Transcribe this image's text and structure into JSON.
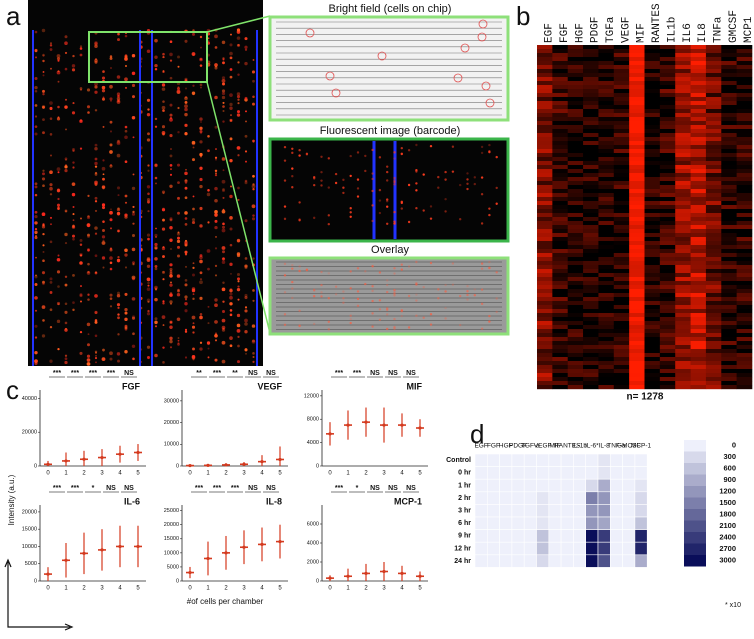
{
  "panel_a": {
    "label": "a",
    "bright_field_title": "Bright field (cells on chip)",
    "fluorescent_title": "Fluorescent image (barcode)",
    "overlay_title": "Overlay"
  },
  "panel_b": {
    "label": "b",
    "columns": [
      "EGF",
      "FGF",
      "HGF",
      "PDGF",
      "TGFa",
      "VEGF",
      "MIF",
      "RANTES",
      "IL1b",
      "IL6",
      "IL8",
      "TNFa",
      "GMCSF",
      "MCP1"
    ],
    "note": "n= 1278"
  },
  "panel_c": {
    "label": "c",
    "y_axis_label": "Intensity (a.u.)",
    "x_axis_label": "#of cells per chamber"
  },
  "panel_d": {
    "label": "d"
  },
  "chart_data": [
    {
      "type": "scatter",
      "title": "FGF",
      "categories": [
        "0",
        "1",
        "2",
        "3",
        "4",
        "5"
      ],
      "values": [
        1000,
        3000,
        4000,
        5000,
        7000,
        8000
      ],
      "errors": [
        2000,
        5000,
        5000,
        5000,
        5000,
        5000
      ],
      "color": "#d43a1f",
      "significance": [
        "***",
        "***",
        "***",
        "***",
        "NS"
      ],
      "ylim": [
        0,
        45000
      ],
      "yticks": [
        0,
        20000,
        40000
      ]
    },
    {
      "type": "scatter",
      "title": "VEGF",
      "categories": [
        "0",
        "1",
        "2",
        "3",
        "4",
        "5"
      ],
      "values": [
        200,
        300,
        500,
        800,
        2000,
        3000
      ],
      "errors": [
        500,
        500,
        800,
        1000,
        3000,
        6000
      ],
      "color": "#d43a1f",
      "significance": [
        "**",
        "***",
        "**",
        "NS",
        "NS"
      ],
      "ylim": [
        0,
        35000
      ],
      "yticks": [
        0,
        10000,
        20000,
        30000
      ]
    },
    {
      "type": "scatter",
      "title": "MIF",
      "categories": [
        "0",
        "1",
        "2",
        "3",
        "4",
        "5"
      ],
      "values": [
        5500,
        7000,
        7500,
        7000,
        7000,
        6500
      ],
      "errors": [
        2000,
        2500,
        2500,
        3000,
        2000,
        1500
      ],
      "color": "#d43a1f",
      "significance": [
        "***",
        "***",
        "NS",
        "NS",
        "NS"
      ],
      "ylim": [
        0,
        13000
      ],
      "yticks": [
        0,
        4000,
        8000,
        12000
      ]
    },
    {
      "type": "scatter",
      "title": "IL-6",
      "categories": [
        "0",
        "1",
        "2",
        "3",
        "4",
        "5"
      ],
      "values": [
        2000,
        6000,
        8000,
        9000,
        10000,
        10000
      ],
      "errors": [
        2000,
        5000,
        6000,
        6000,
        6000,
        6000
      ],
      "color": "#d43a1f",
      "significance": [
        "***",
        "***",
        "*",
        "NS",
        "NS"
      ],
      "ylim": [
        0,
        22000
      ],
      "yticks": [
        0,
        5000,
        10000,
        15000,
        20000
      ]
    },
    {
      "type": "scatter",
      "title": "IL-8",
      "categories": [
        "0",
        "1",
        "2",
        "3",
        "4",
        "5"
      ],
      "values": [
        3000,
        8000,
        10000,
        12000,
        13000,
        14000
      ],
      "errors": [
        2000,
        6000,
        6000,
        6000,
        6000,
        6000
      ],
      "color": "#d43a1f",
      "significance": [
        "***",
        "***",
        "***",
        "NS",
        "NS"
      ],
      "ylim": [
        0,
        27000
      ],
      "yticks": [
        0,
        5000,
        10000,
        15000,
        20000,
        25000
      ]
    },
    {
      "type": "scatter",
      "title": "MCP-1",
      "categories": [
        "0",
        "1",
        "2",
        "3",
        "4",
        "5"
      ],
      "values": [
        300,
        500,
        800,
        1000,
        800,
        500
      ],
      "errors": [
        300,
        800,
        1000,
        1000,
        800,
        500
      ],
      "color": "#d43a1f",
      "significance": [
        "***",
        "*",
        "NS",
        "NS",
        "NS"
      ],
      "ylim": [
        0,
        8000
      ],
      "yticks": [
        0,
        2000,
        4000,
        6000
      ]
    },
    {
      "type": "heatmap",
      "categories": [
        "EGF",
        "FGF",
        "HGF",
        "PDGF",
        "TGF-a",
        "VEGF",
        "MIF",
        "RANTES",
        "IL-1b",
        "IL-6*",
        "IL-8",
        "TNF-a",
        "GMCSF",
        "MCP-1"
      ],
      "rows": [
        "Control",
        "0 hr",
        "1 hr",
        "2 hr",
        "3 hr",
        "6 hr",
        "9 hr",
        "12 hr",
        "24 hr"
      ],
      "values": [
        [
          0,
          0,
          0,
          0,
          0,
          0,
          0,
          0,
          0,
          0,
          150,
          0,
          0,
          0
        ],
        [
          0,
          0,
          0,
          0,
          0,
          0,
          0,
          0,
          0,
          0,
          150,
          0,
          0,
          0
        ],
        [
          0,
          0,
          0,
          0,
          0,
          0,
          0,
          0,
          0,
          300,
          900,
          0,
          0,
          150
        ],
        [
          0,
          0,
          0,
          0,
          0,
          150,
          0,
          0,
          0,
          1500,
          1200,
          0,
          0,
          300
        ],
        [
          0,
          0,
          0,
          0,
          0,
          150,
          0,
          0,
          0,
          1200,
          1200,
          0,
          0,
          300
        ],
        [
          0,
          0,
          0,
          0,
          0,
          150,
          0,
          0,
          0,
          1200,
          1000,
          0,
          0,
          600
        ],
        [
          0,
          0,
          0,
          0,
          0,
          600,
          0,
          0,
          0,
          3000,
          2400,
          0,
          0,
          2700
        ],
        [
          0,
          0,
          0,
          0,
          0,
          600,
          0,
          0,
          0,
          3000,
          2400,
          0,
          0,
          2700
        ],
        [
          0,
          0,
          0,
          0,
          0,
          300,
          0,
          0,
          0,
          3000,
          2100,
          0,
          0,
          900
        ]
      ],
      "zlim": [
        0,
        3000
      ],
      "colors": [
        "#eef0fb",
        "#0a0e5a"
      ],
      "colorbar_ticks": [
        0,
        300,
        600,
        900,
        1200,
        1500,
        1800,
        2100,
        2400,
        2700,
        3000
      ],
      "colorbar_note": "* x10"
    }
  ]
}
